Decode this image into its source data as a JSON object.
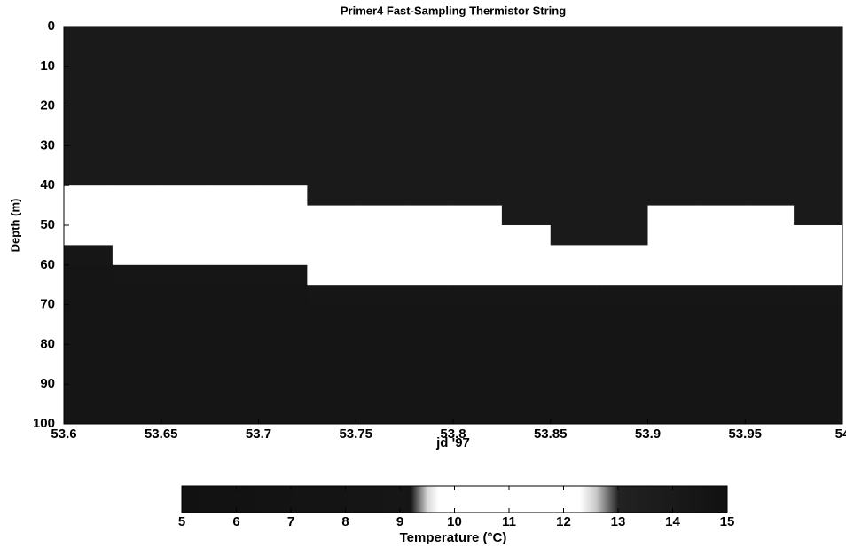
{
  "chart_data": {
    "type": "heatmap",
    "title": "Primer4  Fast-Sampling Thermistor String",
    "xlabel": "jd '97",
    "ylabel": "Depth (m)",
    "xbins": [
      53.6,
      53.625,
      53.65,
      53.675,
      53.7,
      53.725,
      53.75,
      53.775,
      53.8,
      53.825,
      53.85,
      53.875,
      53.9,
      53.925,
      53.95,
      53.975,
      54
    ],
    "ybins": [
      0,
      5,
      10,
      15,
      20,
      25,
      30,
      35,
      40,
      45,
      50,
      55,
      60,
      65,
      70,
      75,
      80,
      85,
      90,
      95,
      100
    ],
    "z": [
      [
        14,
        14,
        14,
        14,
        14,
        14,
        14,
        14,
        14,
        14,
        14,
        14,
        14,
        14,
        14,
        14
      ],
      [
        14,
        14,
        14,
        14,
        14,
        14,
        14,
        14,
        14,
        14,
        14,
        14,
        14,
        14,
        14,
        14
      ],
      [
        14,
        14,
        14,
        14,
        14,
        14,
        14,
        14,
        14,
        14,
        14,
        14,
        14,
        14,
        14,
        14
      ],
      [
        14,
        14,
        14,
        14,
        14,
        14,
        14,
        14,
        14,
        14,
        14,
        14,
        14,
        14,
        14,
        14
      ],
      [
        14,
        14,
        14,
        14,
        14,
        14,
        14,
        14,
        14,
        14,
        14,
        14,
        14,
        14,
        14,
        14
      ],
      [
        14,
        14,
        14,
        14,
        14,
        14,
        14,
        14,
        14,
        14,
        14,
        14,
        14,
        14,
        14,
        14
      ],
      [
        14,
        14,
        14,
        14,
        14,
        14,
        14,
        14,
        14,
        14,
        14,
        14,
        14,
        14,
        14,
        14
      ],
      [
        14,
        14,
        14,
        14,
        14,
        14,
        14,
        14,
        14,
        14,
        14,
        14,
        14,
        14,
        14,
        14
      ],
      [
        12,
        12,
        12,
        12,
        12,
        14,
        14,
        14,
        14,
        14,
        14,
        14,
        14,
        14,
        14,
        14
      ],
      [
        10.5,
        10.5,
        10.5,
        10.5,
        10.5,
        12,
        12,
        12,
        12,
        14,
        14,
        14,
        12,
        12,
        12,
        14
      ],
      [
        10.5,
        10.5,
        10.5,
        10.5,
        10.5,
        10.5,
        10.5,
        10.5,
        10.5,
        12,
        14,
        14,
        10.5,
        10.5,
        10.5,
        12
      ],
      [
        9,
        10.5,
        10.5,
        10.5,
        10.5,
        10.5,
        10.5,
        10.5,
        10.5,
        10.5,
        12,
        12,
        10.5,
        10.5,
        10.5,
        10.5
      ],
      [
        8,
        9,
        9,
        9,
        9,
        10.5,
        10.5,
        10.5,
        10.5,
        10.5,
        10.5,
        10.5,
        10.5,
        10.5,
        10.5,
        10.5
      ],
      [
        8,
        8,
        8,
        8,
        8,
        9,
        9,
        9,
        9,
        9,
        9,
        9,
        9,
        9,
        9,
        9
      ],
      [
        8,
        8,
        8,
        8,
        8,
        8,
        8,
        8,
        8,
        8,
        8,
        8,
        8,
        8,
        8,
        8
      ],
      [
        8,
        8,
        8,
        8,
        8,
        8,
        8,
        8,
        8,
        8,
        8,
        8,
        8,
        8,
        8,
        8
      ],
      [
        8,
        8,
        8,
        8,
        8,
        8,
        8,
        8,
        8,
        8,
        8,
        8,
        8,
        8,
        8,
        8
      ],
      [
        8,
        8,
        8,
        8,
        8,
        8,
        8,
        8,
        8,
        8,
        8,
        8,
        8,
        8,
        8,
        8
      ],
      [
        8,
        8,
        8,
        8,
        8,
        8,
        8,
        8,
        8,
        8,
        8,
        8,
        8,
        8,
        8,
        8
      ],
      [
        8,
        8,
        8,
        8,
        8,
        8,
        8,
        8,
        8,
        8,
        8,
        8,
        8,
        8,
        8,
        8
      ]
    ],
    "xlim": [
      53.6,
      54
    ],
    "xticks": [
      53.6,
      53.65,
      53.7,
      53.75,
      53.8,
      53.85,
      53.9,
      53.95,
      54
    ],
    "ylim": [
      0,
      100
    ],
    "y_inverted": true,
    "yticks": [
      0,
      10,
      20,
      30,
      40,
      50,
      60,
      70,
      80,
      90,
      100
    ],
    "colorbar_label": "Temperature (°C)",
    "clim": [
      5,
      15
    ],
    "cticks": [
      5,
      6,
      7,
      8,
      9,
      10,
      11,
      12,
      13,
      14,
      15
    ],
    "colorscale": [
      [
        5,
        "#111111"
      ],
      [
        9.2,
        "#161616"
      ],
      [
        9.5,
        "#d8d8d8"
      ],
      [
        9.7,
        "#ffffff"
      ],
      [
        12.3,
        "#ffffff"
      ],
      [
        12.6,
        "#c8c8c8"
      ],
      [
        13,
        "#222222"
      ],
      [
        15,
        "#111111"
      ]
    ]
  }
}
